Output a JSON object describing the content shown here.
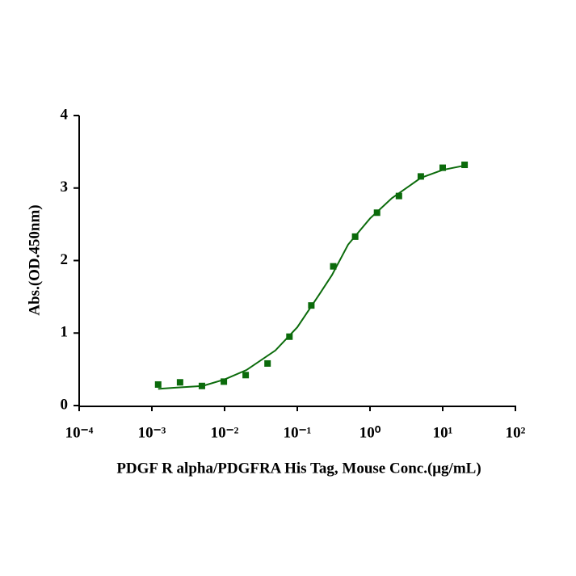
{
  "chart_data": {
    "type": "scatter",
    "x_label": "PDGF R alpha/PDGFRA His Tag, Mouse Conc.(μg/mL)",
    "y_label": "Abs.(OD.450nm)",
    "xscale": "log",
    "xlim": [
      0.0001,
      100
    ],
    "xticks": [
      {
        "value": 0.0001,
        "label": "10⁻⁴"
      },
      {
        "value": 0.001,
        "label": "10⁻³"
      },
      {
        "value": 0.01,
        "label": "10⁻²"
      },
      {
        "value": 0.1,
        "label": "10⁻¹"
      },
      {
        "value": 1,
        "label": "10⁰"
      },
      {
        "value": 10,
        "label": "10¹"
      },
      {
        "value": 100,
        "label": "10²"
      }
    ],
    "ylim": [
      0,
      4
    ],
    "yticks": [
      0,
      1,
      2,
      3,
      4
    ],
    "color": "#0b6b0b",
    "x": [
      0.00122,
      0.00244,
      0.00488,
      0.00977,
      0.0195,
      0.039,
      0.078,
      0.156,
      0.3125,
      0.625,
      1.25,
      2.5,
      5,
      10,
      20
    ],
    "values": [
      0.29,
      0.32,
      0.27,
      0.33,
      0.42,
      0.58,
      0.95,
      1.38,
      1.92,
      2.33,
      2.66,
      2.89,
      3.16,
      3.28,
      3.32
    ],
    "fit": {
      "x": [
        0.00122,
        0.002,
        0.005,
        0.01,
        0.02,
        0.05,
        0.1,
        0.2,
        0.3,
        0.5,
        1,
        2,
        5,
        10,
        20
      ],
      "values": [
        0.23,
        0.245,
        0.27,
        0.36,
        0.49,
        0.76,
        1.08,
        1.53,
        1.8,
        2.22,
        2.58,
        2.86,
        3.14,
        3.25,
        3.31
      ]
    }
  }
}
